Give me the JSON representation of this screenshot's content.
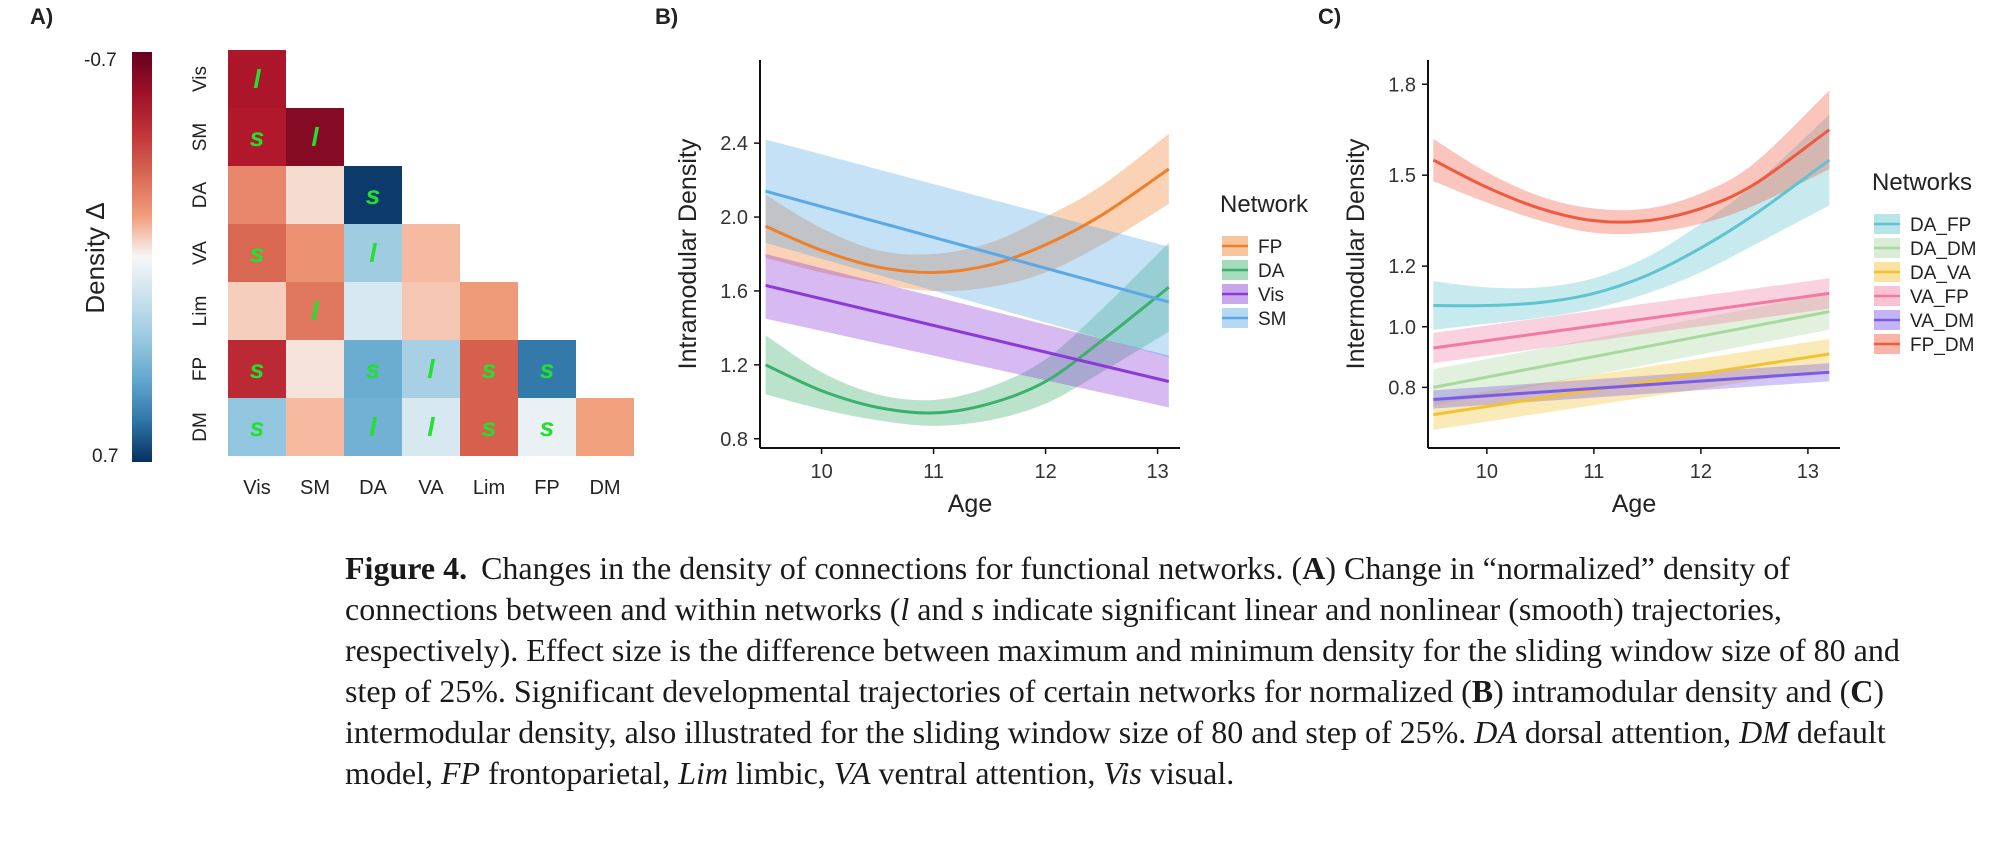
{
  "panel_labels": {
    "a": "A)",
    "b": "B)",
    "c": "C)"
  },
  "chart_data": [
    {
      "type": "heatmap",
      "panel": "A",
      "categories": [
        "Vis",
        "SM",
        "DA",
        "VA",
        "Lim",
        "FP",
        "DM"
      ],
      "colorbar_label": "Density Δ",
      "colorbar_ticks": {
        "top": "-0.7",
        "bottom": "0.7"
      },
      "range": [
        -0.7,
        0.7
      ],
      "cells": [
        {
          "row": "Vis",
          "col": "Vis",
          "value": -0.52,
          "mark": "l"
        },
        {
          "row": "SM",
          "col": "Vis",
          "value": -0.5,
          "mark": "s"
        },
        {
          "row": "SM",
          "col": "SM",
          "value": -0.62,
          "mark": "l"
        },
        {
          "row": "DA",
          "col": "Vis",
          "value": -0.2,
          "mark": ""
        },
        {
          "row": "DA",
          "col": "SM",
          "value": -0.04,
          "mark": ""
        },
        {
          "row": "DA",
          "col": "DA",
          "value": 0.68,
          "mark": "s"
        },
        {
          "row": "VA",
          "col": "Vis",
          "value": -0.28,
          "mark": "s"
        },
        {
          "row": "VA",
          "col": "SM",
          "value": -0.17,
          "mark": ""
        },
        {
          "row": "VA",
          "col": "DA",
          "value": 0.26,
          "mark": "l"
        },
        {
          "row": "VA",
          "col": "VA",
          "value": -0.09,
          "mark": ""
        },
        {
          "row": "Lim",
          "col": "Vis",
          "value": -0.06,
          "mark": ""
        },
        {
          "row": "Lim",
          "col": "SM",
          "value": -0.24,
          "mark": "l"
        },
        {
          "row": "Lim",
          "col": "DA",
          "value": 0.1,
          "mark": ""
        },
        {
          "row": "Lim",
          "col": "VA",
          "value": -0.07,
          "mark": ""
        },
        {
          "row": "Lim",
          "col": "Lim",
          "value": -0.15,
          "mark": ""
        },
        {
          "row": "FP",
          "col": "Vis",
          "value": -0.45,
          "mark": "s"
        },
        {
          "row": "FP",
          "col": "SM",
          "value": -0.03,
          "mark": ""
        },
        {
          "row": "FP",
          "col": "DA",
          "value": 0.4,
          "mark": "s"
        },
        {
          "row": "FP",
          "col": "VA",
          "value": 0.24,
          "mark": "l"
        },
        {
          "row": "FP",
          "col": "Lim",
          "value": -0.3,
          "mark": "s"
        },
        {
          "row": "FP",
          "col": "FP",
          "value": 0.55,
          "mark": "s"
        },
        {
          "row": "DM",
          "col": "Vis",
          "value": 0.3,
          "mark": "s"
        },
        {
          "row": "DM",
          "col": "SM",
          "value": -0.09,
          "mark": ""
        },
        {
          "row": "DM",
          "col": "DA",
          "value": 0.38,
          "mark": "l"
        },
        {
          "row": "DM",
          "col": "VA",
          "value": 0.1,
          "mark": "l"
        },
        {
          "row": "DM",
          "col": "Lim",
          "value": -0.3,
          "mark": "s"
        },
        {
          "row": "DM",
          "col": "FP",
          "value": 0.04,
          "mark": "s"
        },
        {
          "row": "DM",
          "col": "DM",
          "value": -0.13,
          "mark": ""
        }
      ],
      "mark_color": "#22e030"
    },
    {
      "type": "line",
      "panel": "B",
      "xlabel": "Age",
      "ylabel": "Intramodular Density",
      "xlim": [
        9.45,
        13.2
      ],
      "ylim": [
        0.75,
        2.85
      ],
      "xticks": [
        10,
        11,
        12,
        13
      ],
      "yticks": [
        "0.8",
        "1.2",
        "1.6",
        "2.0",
        "2.4"
      ],
      "ytick_values": [
        0.8,
        1.2,
        1.6,
        2.0,
        2.4
      ],
      "legend_title": "Network",
      "legend_placement": "right",
      "series": [
        {
          "name": "FP",
          "color": "#f07f2a",
          "x": [
            9.5,
            10.0,
            10.5,
            11.0,
            11.5,
            12.0,
            12.5,
            13.1
          ],
          "y": [
            1.95,
            1.82,
            1.73,
            1.7,
            1.74,
            1.85,
            2.01,
            2.26
          ],
          "lower": [
            1.78,
            1.7,
            1.64,
            1.6,
            1.62,
            1.7,
            1.85,
            2.07
          ],
          "upper": [
            2.12,
            1.94,
            1.82,
            1.8,
            1.86,
            2.0,
            2.17,
            2.45
          ]
        },
        {
          "name": "DA",
          "color": "#3bb06c",
          "x": [
            9.5,
            10.0,
            10.5,
            11.0,
            11.5,
            12.0,
            12.5,
            13.1
          ],
          "y": [
            1.2,
            1.06,
            0.97,
            0.94,
            0.99,
            1.11,
            1.33,
            1.62
          ],
          "lower": [
            1.04,
            0.96,
            0.9,
            0.87,
            0.9,
            0.99,
            1.16,
            1.38
          ],
          "upper": [
            1.36,
            1.16,
            1.04,
            1.01,
            1.08,
            1.23,
            1.5,
            1.86
          ]
        },
        {
          "name": "Vis",
          "color": "#8a3ad6",
          "x": [
            9.5,
            13.1
          ],
          "y": [
            1.63,
            1.11
          ],
          "lower": [
            1.45,
            0.97
          ],
          "upper": [
            1.8,
            1.25
          ]
        },
        {
          "name": "SM",
          "color": "#5aa9e6",
          "x": [
            9.5,
            13.1
          ],
          "y": [
            2.14,
            1.54
          ],
          "lower": [
            1.86,
            1.24
          ],
          "upper": [
            2.42,
            1.84
          ]
        }
      ]
    },
    {
      "type": "line",
      "panel": "C",
      "xlabel": "Age",
      "ylabel": "Intermodular Density",
      "xlim": [
        9.45,
        13.3
      ],
      "ylim": [
        0.6,
        1.88
      ],
      "xticks": [
        10,
        11,
        12,
        13
      ],
      "yticks": [
        "0.8",
        "1.0",
        "1.2",
        "1.5",
        "1.8"
      ],
      "ytick_values": [
        0.8,
        1.0,
        1.2,
        1.5,
        1.8
      ],
      "legend_title": "Networks",
      "legend_placement": "right",
      "series": [
        {
          "name": "DA_FP",
          "color": "#5fc4cf",
          "x": [
            9.5,
            10.0,
            10.5,
            11.0,
            11.5,
            12.0,
            12.5,
            13.2
          ],
          "y": [
            1.07,
            1.07,
            1.08,
            1.11,
            1.17,
            1.26,
            1.37,
            1.55
          ],
          "lower": [
            0.99,
            1.01,
            1.03,
            1.06,
            1.11,
            1.18,
            1.27,
            1.4
          ],
          "upper": [
            1.15,
            1.13,
            1.13,
            1.16,
            1.23,
            1.34,
            1.47,
            1.7
          ]
        },
        {
          "name": "DA_DM",
          "color": "#a8d8a0",
          "x": [
            9.5,
            13.2
          ],
          "y": [
            0.8,
            1.05
          ],
          "lower": [
            0.74,
            0.99
          ],
          "upper": [
            0.86,
            1.11
          ]
        },
        {
          "name": "DA_VA",
          "color": "#f2c230",
          "x": [
            9.5,
            13.2
          ],
          "y": [
            0.71,
            0.91
          ],
          "lower": [
            0.66,
            0.86
          ],
          "upper": [
            0.76,
            0.96
          ]
        },
        {
          "name": "VA_FP",
          "color": "#f27aa0",
          "x": [
            9.5,
            13.2
          ],
          "y": [
            0.93,
            1.11
          ],
          "lower": [
            0.88,
            1.06
          ],
          "upper": [
            0.98,
            1.16
          ]
        },
        {
          "name": "VA_DM",
          "color": "#7b5ce8",
          "x": [
            9.5,
            13.2
          ],
          "y": [
            0.76,
            0.85
          ],
          "lower": [
            0.73,
            0.82
          ],
          "upper": [
            0.79,
            0.88
          ]
        },
        {
          "name": "FP_DM",
          "color": "#ef5a3f",
          "x": [
            9.5,
            10.0,
            10.5,
            11.0,
            11.5,
            12.0,
            12.5,
            13.2
          ],
          "y": [
            1.55,
            1.46,
            1.39,
            1.35,
            1.35,
            1.39,
            1.47,
            1.65
          ],
          "lower": [
            1.48,
            1.41,
            1.35,
            1.31,
            1.31,
            1.34,
            1.4,
            1.52
          ],
          "upper": [
            1.62,
            1.51,
            1.43,
            1.39,
            1.39,
            1.44,
            1.54,
            1.78
          ]
        }
      ]
    }
  ],
  "caption": {
    "label": "Figure 4.",
    "t1": "Changes in the density of connections for functional networks. (",
    "a": "A",
    "t2": ") Change in “normalized” density of connections between and within networks (",
    "l": "l",
    "t3": " and ",
    "s": "s",
    "t4": " indicate significant linear and nonlinear (smooth) trajectories, respectively). Effect size is the difference between maximum and minimum density for the sliding window size of 80 and step of 25%. Significant developmental trajectories of certain networks for normalized (",
    "b": "B",
    "t5": ") intramodular density and (",
    "c": "C",
    "t6": ") intermodular density, also illustrated for the sliding window size of 80 and step of 25%. ",
    "da": "DA",
    "t7": " dorsal attention, ",
    "dm": "DM",
    "t8": " default model, ",
    "fp": "FP",
    "t9": " frontoparietal, ",
    "lim": "Lim",
    "t10": " limbic, ",
    "va": "VA",
    "t11": " ventral attention, ",
    "vis": "Vis",
    "t12": " visual."
  }
}
